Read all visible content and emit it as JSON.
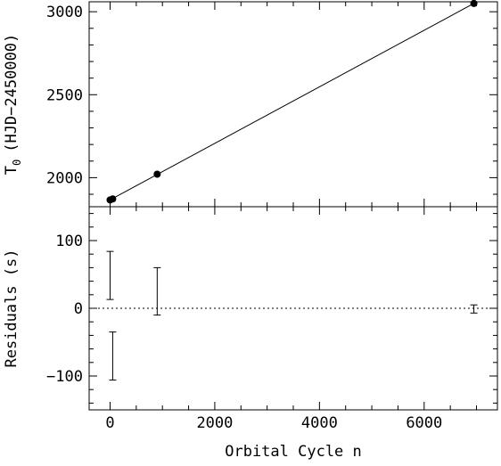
{
  "chart_data": [
    {
      "type": "line",
      "panel": "top",
      "xlabel": "",
      "ylabel": "T",
      "ylabel_subscript": "0",
      "ylabel_suffix": "(HJD−2450000)",
      "xlim": [
        -400,
        7400
      ],
      "ylim": [
        1825,
        3060
      ],
      "yticks": [
        2000,
        2500,
        3000
      ],
      "ytick_labels": [
        "2000",
        "2500",
        "3000"
      ],
      "series": [
        {
          "x": [
            0,
            50,
            900,
            6950
          ],
          "y": [
            1866,
            1872,
            2021,
            3050
          ]
        }
      ],
      "fit_line": {
        "x": [
          0,
          6950
        ],
        "y": [
          1866,
          3050
        ]
      }
    },
    {
      "type": "scatter",
      "panel": "bottom",
      "xlabel": "Orbital Cycle n",
      "ylabel": "Residuals (s)",
      "xlim": [
        -400,
        7400
      ],
      "ylim": [
        -150,
        150
      ],
      "xticks": [
        0,
        2000,
        4000,
        6000
      ],
      "xtick_labels": [
        "0",
        "2000",
        "4000",
        "6000"
      ],
      "yticks": [
        -100,
        0,
        100
      ],
      "ytick_labels": [
        "−100",
        "0",
        "100"
      ],
      "zero_line": "dotted",
      "series": [
        {
          "x": [
            0,
            50,
            900,
            6950
          ],
          "ylow": [
            13,
            -106,
            -10,
            -7
          ],
          "yhigh": [
            84,
            -35,
            60,
            5
          ]
        }
      ]
    }
  ]
}
